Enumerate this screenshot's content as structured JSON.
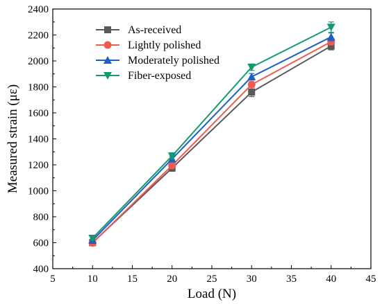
{
  "chart_data": {
    "type": "line",
    "xlabel": "Load (N)",
    "ylabel": "Measured strain (με)",
    "xlim": [
      5,
      45
    ],
    "ylim": [
      400,
      2400
    ],
    "xticks": [
      5,
      10,
      15,
      20,
      25,
      30,
      35,
      40,
      45
    ],
    "yticks": [
      400,
      600,
      800,
      1000,
      1200,
      1400,
      1600,
      1800,
      2000,
      2200,
      2400
    ],
    "grid": false,
    "legend": "top-left",
    "x": [
      10,
      20,
      30,
      40
    ],
    "series": [
      {
        "name": "As-received",
        "marker": "square",
        "color": "#595959",
        "values": [
          600,
          1175,
          1760,
          2115
        ],
        "errors": [
          15,
          25,
          35,
          30
        ]
      },
      {
        "name": "Lightly polished",
        "marker": "circle",
        "color": "#f05a4f",
        "values": [
          598,
          1195,
          1818,
          2148
        ],
        "errors": [
          10,
          20,
          25,
          25
        ]
      },
      {
        "name": "Moderately polished",
        "marker": "triangle-up",
        "color": "#1f5fc2",
        "values": [
          618,
          1245,
          1878,
          2185
        ],
        "errors": [
          10,
          20,
          25,
          30
        ]
      },
      {
        "name": "Fiber-exposed",
        "marker": "triangle-down",
        "color": "#149a72",
        "values": [
          635,
          1268,
          1952,
          2260
        ],
        "errors": [
          15,
          25,
          25,
          40
        ]
      }
    ]
  }
}
